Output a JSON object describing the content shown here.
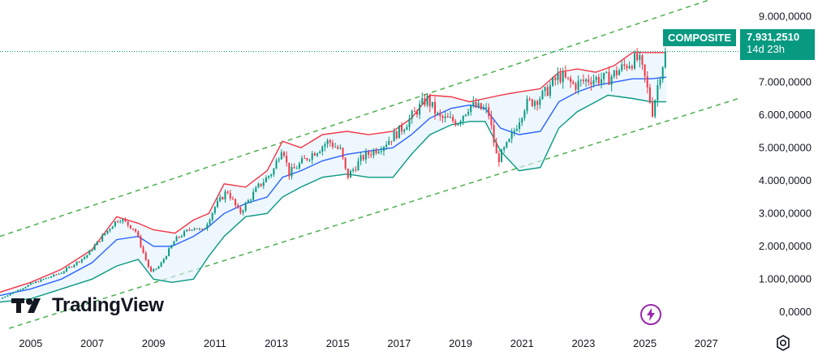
{
  "chart_data": {
    "type": "candlestick",
    "symbol": "COMPOSITE",
    "last_price_label": "7.931,2510",
    "countdown": "14d 23h",
    "ylim": [
      -500000,
      9500000
    ],
    "yticks": [
      {
        "value": 9000000,
        "label": "9.000,0000"
      },
      {
        "value": 8000000,
        "label": "8.000,0000"
      },
      {
        "value": 7000000,
        "label": "7.000,0000"
      },
      {
        "value": 6000000,
        "label": "6.000,0000"
      },
      {
        "value": 5000000,
        "label": "5.000,0000"
      },
      {
        "value": 4000000,
        "label": "4.000,0000"
      },
      {
        "value": 3000000,
        "label": "3.000,0000"
      },
      {
        "value": 2000000,
        "label": "2.000,0000"
      },
      {
        "value": 1000000,
        "label": "1.000,0000"
      },
      {
        "value": 0,
        "label": "0,0000"
      }
    ],
    "xlim": [
      2004.0,
      2028.05
    ],
    "xticks": [
      {
        "value": 2005,
        "label": "2005"
      },
      {
        "value": 2007,
        "label": "2007"
      },
      {
        "value": 2009,
        "label": "2009"
      },
      {
        "value": 2011,
        "label": "2011"
      },
      {
        "value": 2013,
        "label": "2013"
      },
      {
        "value": 2015,
        "label": "2015"
      },
      {
        "value": 2017,
        "label": "2017"
      },
      {
        "value": 2019,
        "label": "2019"
      },
      {
        "value": 2021,
        "label": "2021"
      },
      {
        "value": 2023,
        "label": "2023"
      },
      {
        "value": 2025,
        "label": "2025"
      },
      {
        "value": 2027,
        "label": "2027"
      }
    ],
    "last_value": 7931251,
    "price_path": [
      [
        2004.0,
        400000
      ],
      [
        2005.0,
        850000
      ],
      [
        2006.0,
        1200000
      ],
      [
        2006.8,
        1700000
      ],
      [
        2007.7,
        2700000
      ],
      [
        2007.9,
        2850000
      ],
      [
        2008.4,
        2500000
      ],
      [
        2008.9,
        1200000
      ],
      [
        2009.2,
        1400000
      ],
      [
        2009.7,
        2200000
      ],
      [
        2010.3,
        2600000
      ],
      [
        2010.6,
        2450000
      ],
      [
        2011.0,
        3200000
      ],
      [
        2011.4,
        3700000
      ],
      [
        2011.8,
        3000000
      ],
      [
        2012.4,
        3800000
      ],
      [
        2012.9,
        4300000
      ],
      [
        2013.2,
        5100000
      ],
      [
        2013.4,
        4200000
      ],
      [
        2014.0,
        4700000
      ],
      [
        2014.7,
        5200000
      ],
      [
        2015.1,
        4900000
      ],
      [
        2015.3,
        4100000
      ],
      [
        2015.8,
        4700000
      ],
      [
        2016.5,
        5100000
      ],
      [
        2017.1,
        5600000
      ],
      [
        2017.9,
        6500000
      ],
      [
        2018.3,
        5900000
      ],
      [
        2018.9,
        5800000
      ],
      [
        2019.3,
        6300000
      ],
      [
        2019.9,
        6100000
      ],
      [
        2020.2,
        4600000
      ],
      [
        2020.6,
        5200000
      ],
      [
        2021.1,
        6300000
      ],
      [
        2021.7,
        6600000
      ],
      [
        2022.2,
        7200000
      ],
      [
        2022.7,
        6900000
      ],
      [
        2023.2,
        7100000
      ],
      [
        2023.8,
        7100000
      ],
      [
        2024.5,
        7600000
      ],
      [
        2024.8,
        7700000
      ],
      [
        2025.0,
        7100000
      ],
      [
        2025.25,
        6100000
      ],
      [
        2025.5,
        7300000
      ],
      [
        2025.7,
        7931251
      ]
    ],
    "bands": {
      "upper": [
        [
          2004.0,
          600000
        ],
        [
          2005.0,
          900000
        ],
        [
          2006.0,
          1300000
        ],
        [
          2007.0,
          1900000
        ],
        [
          2007.8,
          2900000
        ],
        [
          2008.5,
          2700000
        ],
        [
          2009.0,
          2500000
        ],
        [
          2009.7,
          2400000
        ],
        [
          2010.3,
          2800000
        ],
        [
          2010.8,
          3000000
        ],
        [
          2011.3,
          3900000
        ],
        [
          2012.0,
          3800000
        ],
        [
          2012.7,
          4300000
        ],
        [
          2013.2,
          5200000
        ],
        [
          2013.8,
          5000000
        ],
        [
          2014.5,
          5400000
        ],
        [
          2015.3,
          5500000
        ],
        [
          2016.0,
          5400000
        ],
        [
          2016.8,
          5500000
        ],
        [
          2017.4,
          5900000
        ],
        [
          2018.0,
          6600000
        ],
        [
          2018.7,
          6550000
        ],
        [
          2019.3,
          6400000
        ],
        [
          2019.8,
          6500000
        ],
        [
          2020.3,
          6600000
        ],
        [
          2020.9,
          6700000
        ],
        [
          2021.6,
          6800000
        ],
        [
          2022.2,
          7300000
        ],
        [
          2022.8,
          7400000
        ],
        [
          2023.4,
          7300000
        ],
        [
          2024.0,
          7500000
        ],
        [
          2024.6,
          7900000
        ],
        [
          2025.2,
          7900000
        ],
        [
          2025.7,
          7900000
        ]
      ],
      "middle": [
        [
          2004.0,
          500000
        ],
        [
          2005.0,
          700000
        ],
        [
          2006.0,
          1000000
        ],
        [
          2007.0,
          1500000
        ],
        [
          2007.8,
          2200000
        ],
        [
          2008.5,
          2300000
        ],
        [
          2009.0,
          2000000
        ],
        [
          2009.6,
          2000000
        ],
        [
          2010.3,
          2300000
        ],
        [
          2010.8,
          2600000
        ],
        [
          2011.3,
          3000000
        ],
        [
          2012.0,
          3300000
        ],
        [
          2012.7,
          3500000
        ],
        [
          2013.2,
          4100000
        ],
        [
          2013.8,
          4300000
        ],
        [
          2014.5,
          4600000
        ],
        [
          2015.3,
          4800000
        ],
        [
          2016.0,
          4900000
        ],
        [
          2016.8,
          5000000
        ],
        [
          2017.4,
          5400000
        ],
        [
          2018.0,
          5900000
        ],
        [
          2018.7,
          6200000
        ],
        [
          2019.3,
          6300000
        ],
        [
          2019.8,
          6200000
        ],
        [
          2020.3,
          5600000
        ],
        [
          2020.9,
          5400000
        ],
        [
          2021.6,
          5500000
        ],
        [
          2022.2,
          6400000
        ],
        [
          2022.8,
          6700000
        ],
        [
          2023.4,
          6900000
        ],
        [
          2024.0,
          7000000
        ],
        [
          2024.6,
          7100000
        ],
        [
          2025.2,
          7100000
        ],
        [
          2025.7,
          7150000
        ]
      ],
      "lower": [
        [
          2004.0,
          300000
        ],
        [
          2005.0,
          400000
        ],
        [
          2006.0,
          700000
        ],
        [
          2007.0,
          1000000
        ],
        [
          2007.8,
          1400000
        ],
        [
          2008.5,
          1600000
        ],
        [
          2009.0,
          1000000
        ],
        [
          2009.6,
          900000
        ],
        [
          2010.3,
          1000000
        ],
        [
          2010.8,
          1700000
        ],
        [
          2011.3,
          2300000
        ],
        [
          2012.0,
          2900000
        ],
        [
          2012.7,
          3000000
        ],
        [
          2013.2,
          3500000
        ],
        [
          2013.8,
          3800000
        ],
        [
          2014.5,
          4100000
        ],
        [
          2015.3,
          4200000
        ],
        [
          2016.0,
          4100000
        ],
        [
          2016.8,
          4100000
        ],
        [
          2017.4,
          4800000
        ],
        [
          2018.0,
          5400000
        ],
        [
          2018.7,
          5700000
        ],
        [
          2019.3,
          5800000
        ],
        [
          2019.8,
          5800000
        ],
        [
          2020.3,
          4900000
        ],
        [
          2020.9,
          4300000
        ],
        [
          2021.6,
          4400000
        ],
        [
          2022.2,
          5600000
        ],
        [
          2022.8,
          6100000
        ],
        [
          2023.4,
          6400000
        ],
        [
          2023.8,
          6600000
        ],
        [
          2024.6,
          6500000
        ],
        [
          2025.2,
          6400000
        ],
        [
          2025.7,
          6400000
        ]
      ]
    },
    "channel": {
      "upper": [
        [
          2004.0,
          2300000
        ],
        [
          2028.05,
          9800000
        ]
      ],
      "lower": [
        [
          2004.3,
          -500000
        ],
        [
          2028.05,
          6500000
        ]
      ]
    },
    "colors": {
      "up": "#089981",
      "down": "#f23645",
      "upper_band": "#f23645",
      "middle_band": "#2962ff",
      "lower_band": "#089981",
      "band_fill": "#e3f2fd",
      "channel": "#4caf50",
      "price_line": "#089981"
    }
  },
  "watermark": {
    "brand": "TradingView",
    "logo_icon": "tradingview-logo-icon"
  },
  "icons": {
    "flash": "flash-icon",
    "settings": "gear-icon"
  }
}
